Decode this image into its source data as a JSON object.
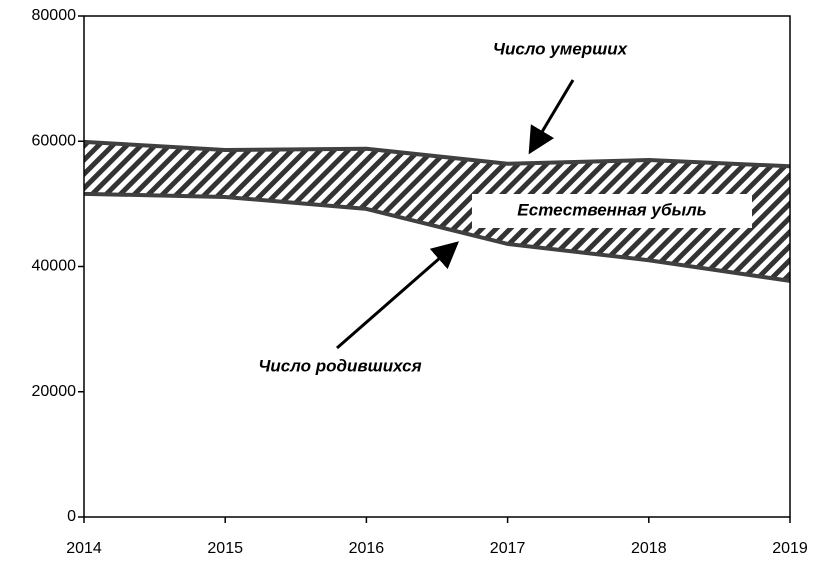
{
  "chart_data": {
    "type": "line",
    "x": [
      2014,
      2015,
      2016,
      2017,
      2018,
      2019
    ],
    "series": [
      {
        "name": "Число умерших",
        "color": "#404040",
        "values": [
          59900,
          58600,
          58800,
          56400,
          57000,
          56000
        ]
      },
      {
        "name": "Число родившихся",
        "color": "#404040",
        "values": [
          51600,
          51100,
          49200,
          43600,
          41000,
          37700
        ]
      }
    ],
    "fill_between": true,
    "fill_color": "#333333",
    "xlim": [
      2014,
      2019
    ],
    "xticks": [
      2014,
      2015,
      2016,
      2017,
      2018,
      2019
    ],
    "ylim": [
      0,
      80000
    ],
    "yticks": [
      0,
      20000,
      40000,
      60000,
      80000
    ],
    "grid": false,
    "annotations": [
      "Число  умерших",
      "Естественная убыль",
      "Число  родившихся"
    ]
  }
}
